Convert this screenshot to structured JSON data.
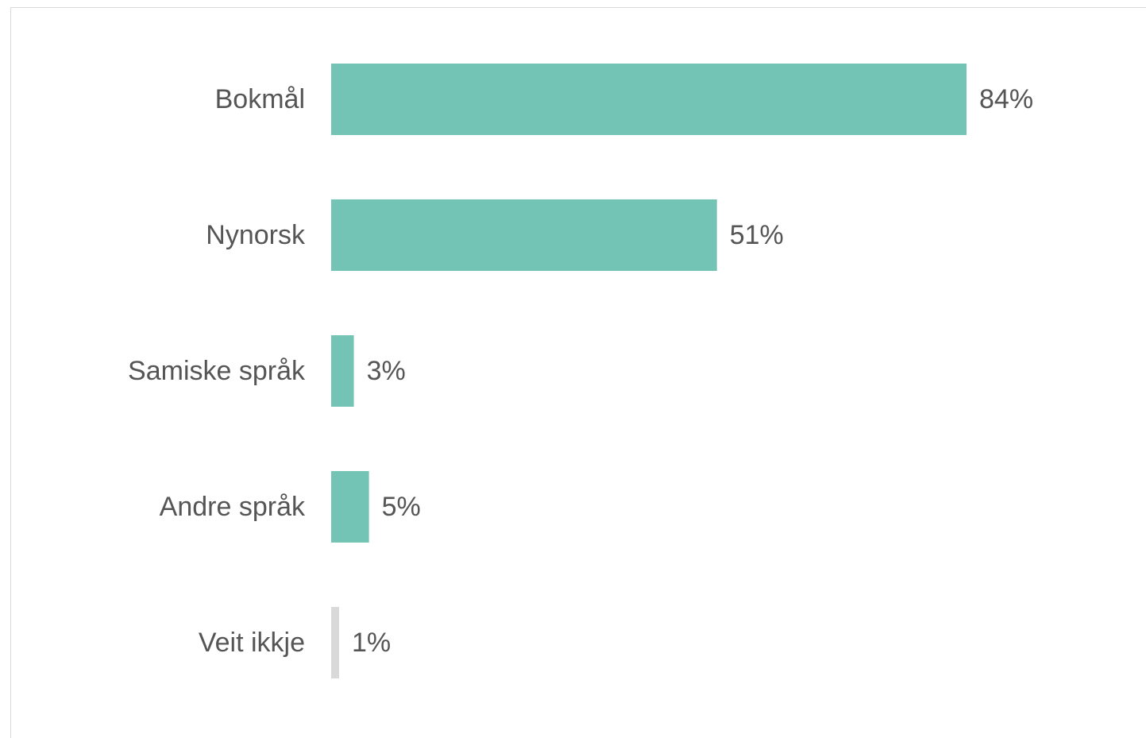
{
  "chart_data": {
    "type": "bar",
    "orientation": "horizontal",
    "categories": [
      "Bokmål",
      "Nynorsk",
      "Samiske språk",
      "Andre språk",
      "Veit ikkje"
    ],
    "values": [
      84,
      51,
      3,
      5,
      1
    ],
    "value_labels": [
      "84%",
      "51%",
      "3%",
      "5%",
      "1%"
    ],
    "unit": "%",
    "colors": [
      "#73c4b5",
      "#73c4b5",
      "#73c4b5",
      "#73c4b5",
      "#d9d9d9"
    ],
    "xlim": [
      0,
      100
    ],
    "grid": false,
    "legend": "none"
  }
}
